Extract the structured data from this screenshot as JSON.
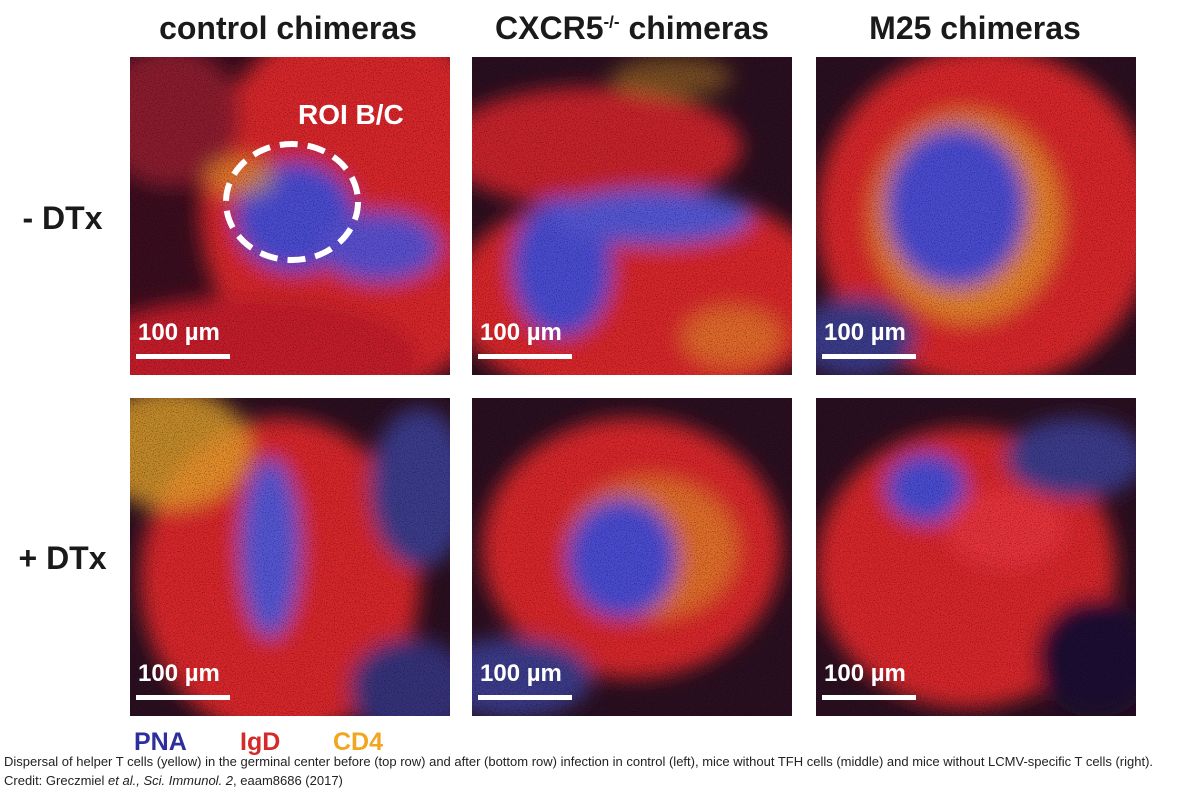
{
  "columns": [
    {
      "title": "control chimeras",
      "sup": ""
    },
    {
      "title": "CXCR5",
      "sup": "-/-",
      "suffix": " chimeras"
    },
    {
      "title": "M25 chimeras",
      "sup": ""
    }
  ],
  "rows": [
    "- DTx",
    "+ DTx"
  ],
  "scale_label": "100 µm",
  "roi_label": "ROI B/C",
  "legend": [
    {
      "label": "PNA",
      "color": "#2e2e9c"
    },
    {
      "label": "IgD",
      "color": "#d42a2a"
    },
    {
      "label": "CD4",
      "color": "#f2a51f"
    }
  ],
  "caption": {
    "text1": "Dispersal of helper T cells (yellow) in the germinal center before (top row) and after (bottom row) infection in control (left), mice without TFH cells (middle) and mice without LCMV-specific T cells (right). Credit: Greczmiel ",
    "et_al": "et al., Sci. Immunol. 2",
    "text2": ", eaam8686 (2017)"
  },
  "colors": {
    "pna_blue": "#4a4bd1",
    "igd_red": "#d8262a",
    "cd4_yellow": "#e9a82a",
    "background": "#150a14"
  }
}
